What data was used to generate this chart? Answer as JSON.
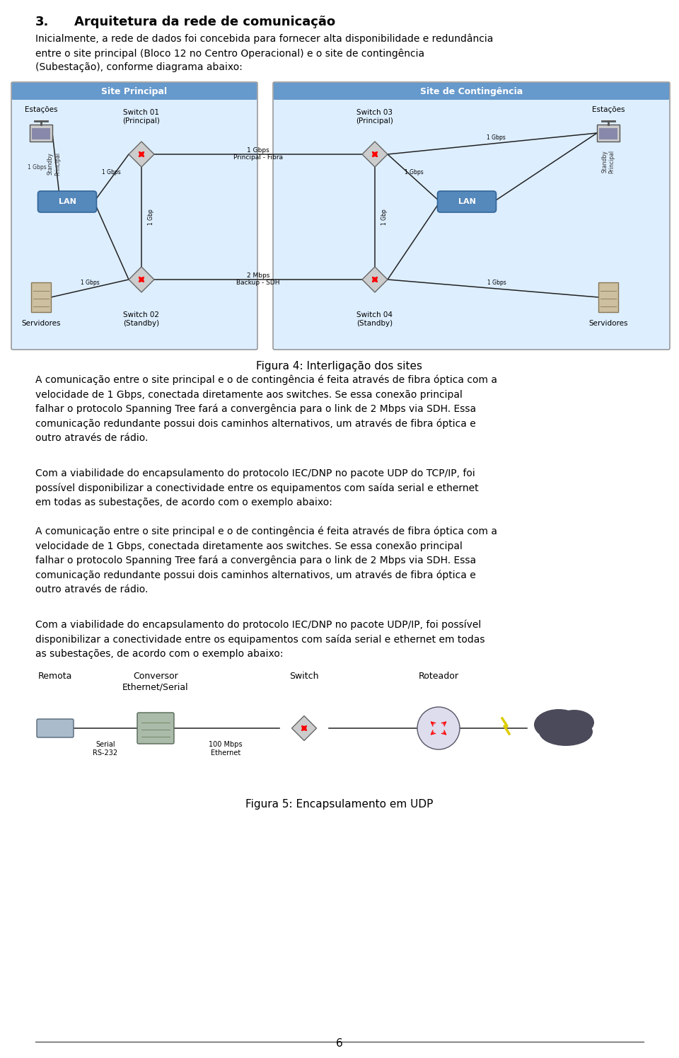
{
  "page_bg": "#ffffff",
  "section_number": "3.",
  "section_title": "Arquitetura da rede de comunicação",
  "intro_paragraph": "Inicialmente, a rede de dados foi concebida para fornecer alta disponibilidade e redundância\nentre o site principal (Bloco 12 no Centro Operacional) e o site de contingência\n(Subestação), conforme diagrama abaixo:",
  "figura4_caption": "Figura 4: Interligação dos sites",
  "para1": "A comunicação entre o site principal e o de contingência é feita através de fibra óptica com a\nvelocidade de 1 Gbps, conectada diretamente aos switches. Se essa conexão principal\nfalhar o protocolo Spanning Tree fará a convergência para o link de 2 Mbps via SDH. Essa\ncomunicação redundante possui dois caminhos alternativos, um através de fibra óptica e\noutro através de rádio.",
  "para2": "Com a viabilidade do encapsulamento do protocolo IEC/DNP no pacote UDP do TCP/IP, foi\npossível disponibilizar a conectividade entre os equipamentos com saída serial e ethernet\nem todas as subestações, de acordo com o exemplo abaixo:",
  "para3": "A comunicação entre o site principal e o de contingência é feita através de fibra óptica com a\nvelocidade de 1 Gbps, conectada diretamente aos switches. Se essa conexão principal\nfalhar o protocolo Spanning Tree fará a convergência para o link de 2 Mbps via SDH. Essa\ncomunicação redundante possui dois caminhos alternativos, um através de fibra óptica e\noutro através de rádio.",
  "para4": "Com a viabilidade do encapsulamento do protocolo IEC/DNP no pacote UDP/IP, foi possível\ndisponibilizar a conectividade entre os equipamentos com saída serial e ethernet em todas\nas subestações, de acordo com o exemplo abaixo:",
  "figura5_caption": "Figura 5: Encapsulamento em UDP",
  "page_number": "6",
  "site_principal": "Site Principal",
  "site_contingencia": "Site de Contingência",
  "header_color": "#6699cc",
  "box_bg": "#ddeeff",
  "sw01_label": "Switch 01\n(Principal)",
  "sw02_label": "Switch 02\n(Standby)",
  "sw03_label": "Switch 03\n(Principal)",
  "sw04_label": "Switch 04\n(Standby)",
  "lan_label": "LAN",
  "estacoes_label": "Estações",
  "servidores_label": "Servidores",
  "link_1gbps_fiber": "1 Gbps\nPrincipal - Fibra",
  "link_2mbps": "2 Mbps\nBackup - SDH",
  "link_1gbps": "1 Gbps",
  "link_1gbp": "1 Gbp",
  "remota_label": "Remota",
  "conversor_label": "Conversor\nEthernet/Serial",
  "switch_label": "Switch",
  "roteador_label": "Roteador",
  "serial_label": "Serial\nRS-232",
  "eth_label": "100 Mbps\nEthernet"
}
